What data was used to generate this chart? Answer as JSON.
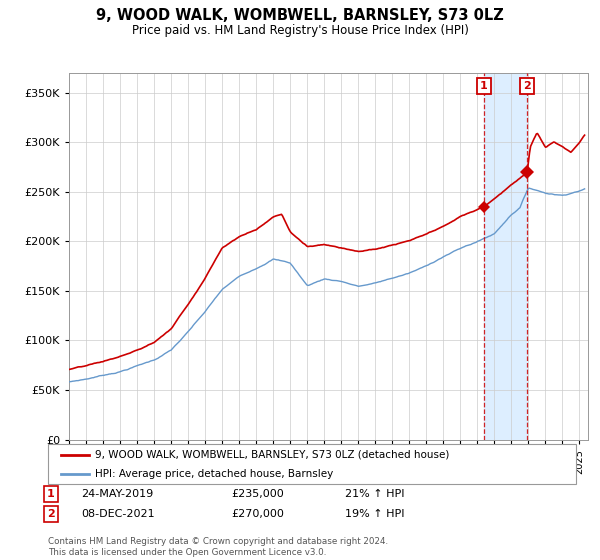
{
  "title": "9, WOOD WALK, WOMBWELL, BARNSLEY, S73 0LZ",
  "subtitle": "Price paid vs. HM Land Registry's House Price Index (HPI)",
  "ylim": [
    0,
    370000
  ],
  "xlim_start": 1995.0,
  "xlim_end": 2025.5,
  "legend_line1": "9, WOOD WALK, WOMBWELL, BARNSLEY, S73 0LZ (detached house)",
  "legend_line2": "HPI: Average price, detached house, Barnsley",
  "transaction1_label": "1",
  "transaction1_date": "24-MAY-2019",
  "transaction1_price": "£235,000",
  "transaction1_change": "21% ↑ HPI",
  "transaction2_label": "2",
  "transaction2_date": "08-DEC-2021",
  "transaction2_price": "£270,000",
  "transaction2_change": "19% ↑ HPI",
  "footnote": "Contains HM Land Registry data © Crown copyright and database right 2024.\nThis data is licensed under the Open Government Licence v3.0.",
  "red_color": "#cc0000",
  "blue_color": "#6699cc",
  "blue_fill_color": "#ddeeff",
  "transaction1_x": 2019.39,
  "transaction1_y": 235000,
  "transaction2_x": 2021.93,
  "transaction2_y": 270000,
  "background_color": "#ffffff",
  "grid_color": "#cccccc"
}
